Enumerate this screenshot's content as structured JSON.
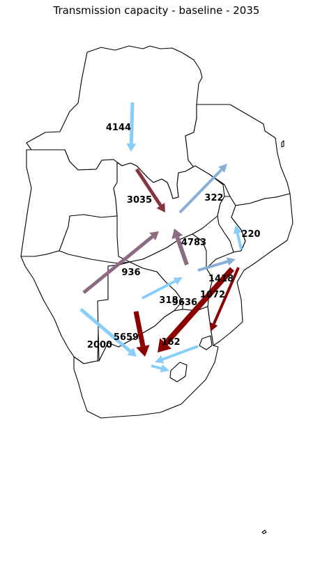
{
  "title": "Transmission capacity - baseline - 2035",
  "colors": {
    "light_blue": "#87cefa",
    "steel_blue": "#87aed6",
    "mauve": "#8c6b82",
    "dark_red": "#8b0000",
    "maroon": "#86343f"
  },
  "flows": [
    {
      "label": "4144",
      "color": "light_blue"
    },
    {
      "label": "3035",
      "color": "maroon"
    },
    {
      "label": "322",
      "color": "steel_blue"
    },
    {
      "label": "4783",
      "color": "mauve"
    },
    {
      "label": "220",
      "color": "light_blue"
    },
    {
      "label": "936",
      "color": "mauve"
    },
    {
      "label": "1418",
      "color": "steel_blue"
    },
    {
      "label": "1072",
      "color": "dark_red"
    },
    {
      "label": "318",
      "color": "light_blue"
    },
    {
      "label": "9636",
      "color": "dark_red"
    },
    {
      "label": "5659",
      "color": "dark_red"
    },
    {
      "label": "2000",
      "color": "light_blue"
    },
    {
      "label": "162",
      "color": "light_blue"
    },
    {
      "label": "",
      "color": "light_blue"
    }
  ]
}
